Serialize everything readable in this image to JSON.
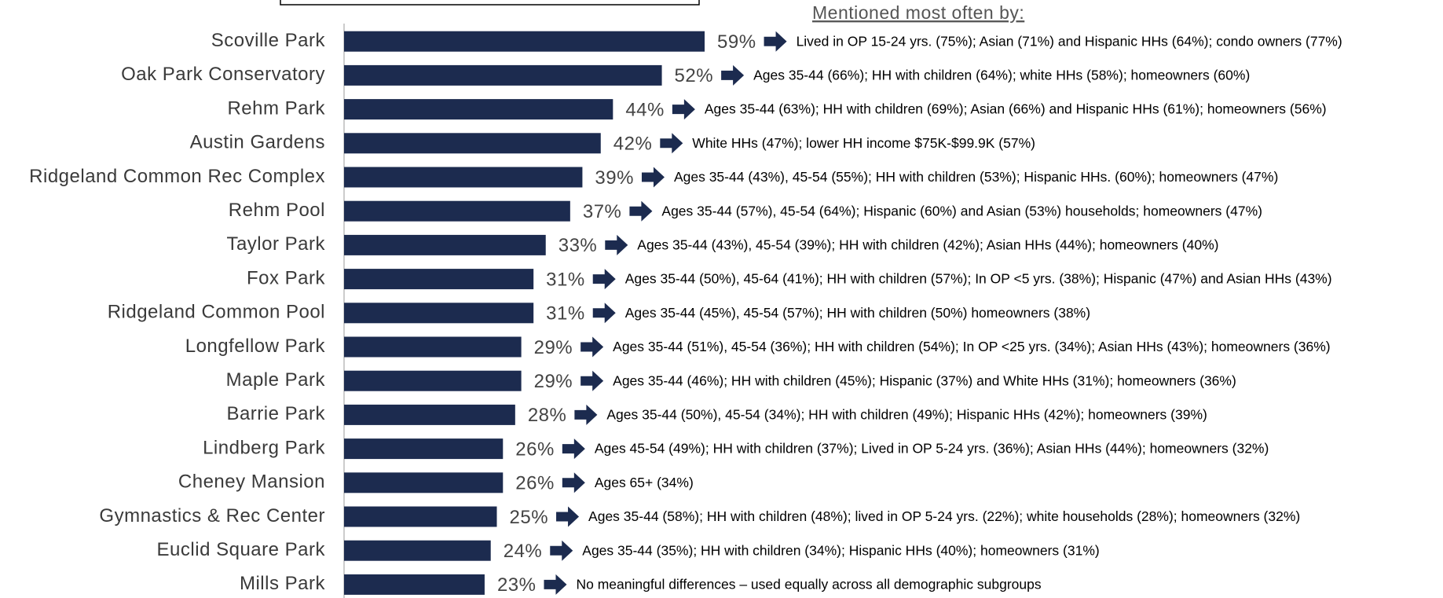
{
  "chart_data": {
    "type": "bar",
    "orientation": "horizontal",
    "color": "#1c2b4f",
    "annotation_title": "Mentioned most often by:",
    "xlim": [
      0,
      100
    ],
    "categories": [
      "Scoville Park",
      "Oak Park Conservatory",
      "Rehm Park",
      "Austin Gardens",
      "Ridgeland Common Rec Complex",
      "Rehm Pool",
      "Taylor Park",
      "Fox Park",
      "Ridgeland Common Pool",
      "Longfellow Park",
      "Maple Park",
      "Barrie Park",
      "Lindberg Park",
      "Cheney Mansion",
      "Gymnastics & Rec Center",
      "Euclid Square Park",
      "Mills Park"
    ],
    "values": [
      59,
      52,
      44,
      42,
      39,
      37,
      33,
      31,
      31,
      29,
      29,
      28,
      26,
      26,
      25,
      24,
      23
    ],
    "value_labels": [
      "59%",
      "52%",
      "44%",
      "42%",
      "39%",
      "37%",
      "33%",
      "31%",
      "31%",
      "29%",
      "29%",
      "28%",
      "26%",
      "26%",
      "25%",
      "24%",
      "23%"
    ],
    "annotations": [
      "Lived in OP 15-24 yrs. (75%); Asian (71%) and Hispanic HHs (64%); condo owners (77%)",
      "Ages 35-44 (66%); HH with children (64%); white HHs (58%); homeowners (60%)",
      "Ages 35-44 (63%); HH with children (69%); Asian (66%) and Hispanic HHs (61%); homeowners (56%)",
      "White HHs (47%); lower HH income $75K-$99.9K (57%)",
      "Ages 35-44 (43%), 45-54 (55%); HH with children (53%); Hispanic HHs. (60%); homeowners (47%)",
      "Ages 35-44 (57%), 45-54 (64%); Hispanic (60%) and Asian (53%) households; homeowners (47%)",
      "Ages 35-44 (43%), 45-54 (39%); HH with children (42%); Asian HHs (44%); homeowners (40%)",
      "Ages 35-44 (50%), 45-64 (41%); HH with children (57%); In OP <5 yrs. (38%); Hispanic (47%) and Asian HHs (43%)",
      "Ages 35-44 (45%), 45-54 (57%); HH with children (50%) homeowners (38%)",
      "Ages 35-44 (51%), 45-54 (36%); HH with children (54%); In OP <25 yrs. (34%); Asian HHs (43%); homeowners (36%)",
      "Ages 35-44 (46%); HH with children (45%); Hispanic (37%) and White HHs (31%); homeowners (36%)",
      "Ages 35-44 (50%), 45-54 (34%); HH with children (49%); Hispanic HHs (42%); homeowners (39%)",
      "Ages 45-54 (49%); HH with children (37%); Lived in OP 5-24 yrs. (36%); Asian HHs (44%); homeowners (32%)",
      "Ages 65+ (34%)",
      "Ages 35-44 (58%); HH with children (48%); lived in OP 5-24 yrs. (22%); white households (28%); homeowners (32%)",
      "Ages 35-44 (35%); HH with children (34%); Hispanic HHs (40%); homeowners (31%)",
      "No meaningful differences – used equally across all demographic subgroups"
    ]
  }
}
